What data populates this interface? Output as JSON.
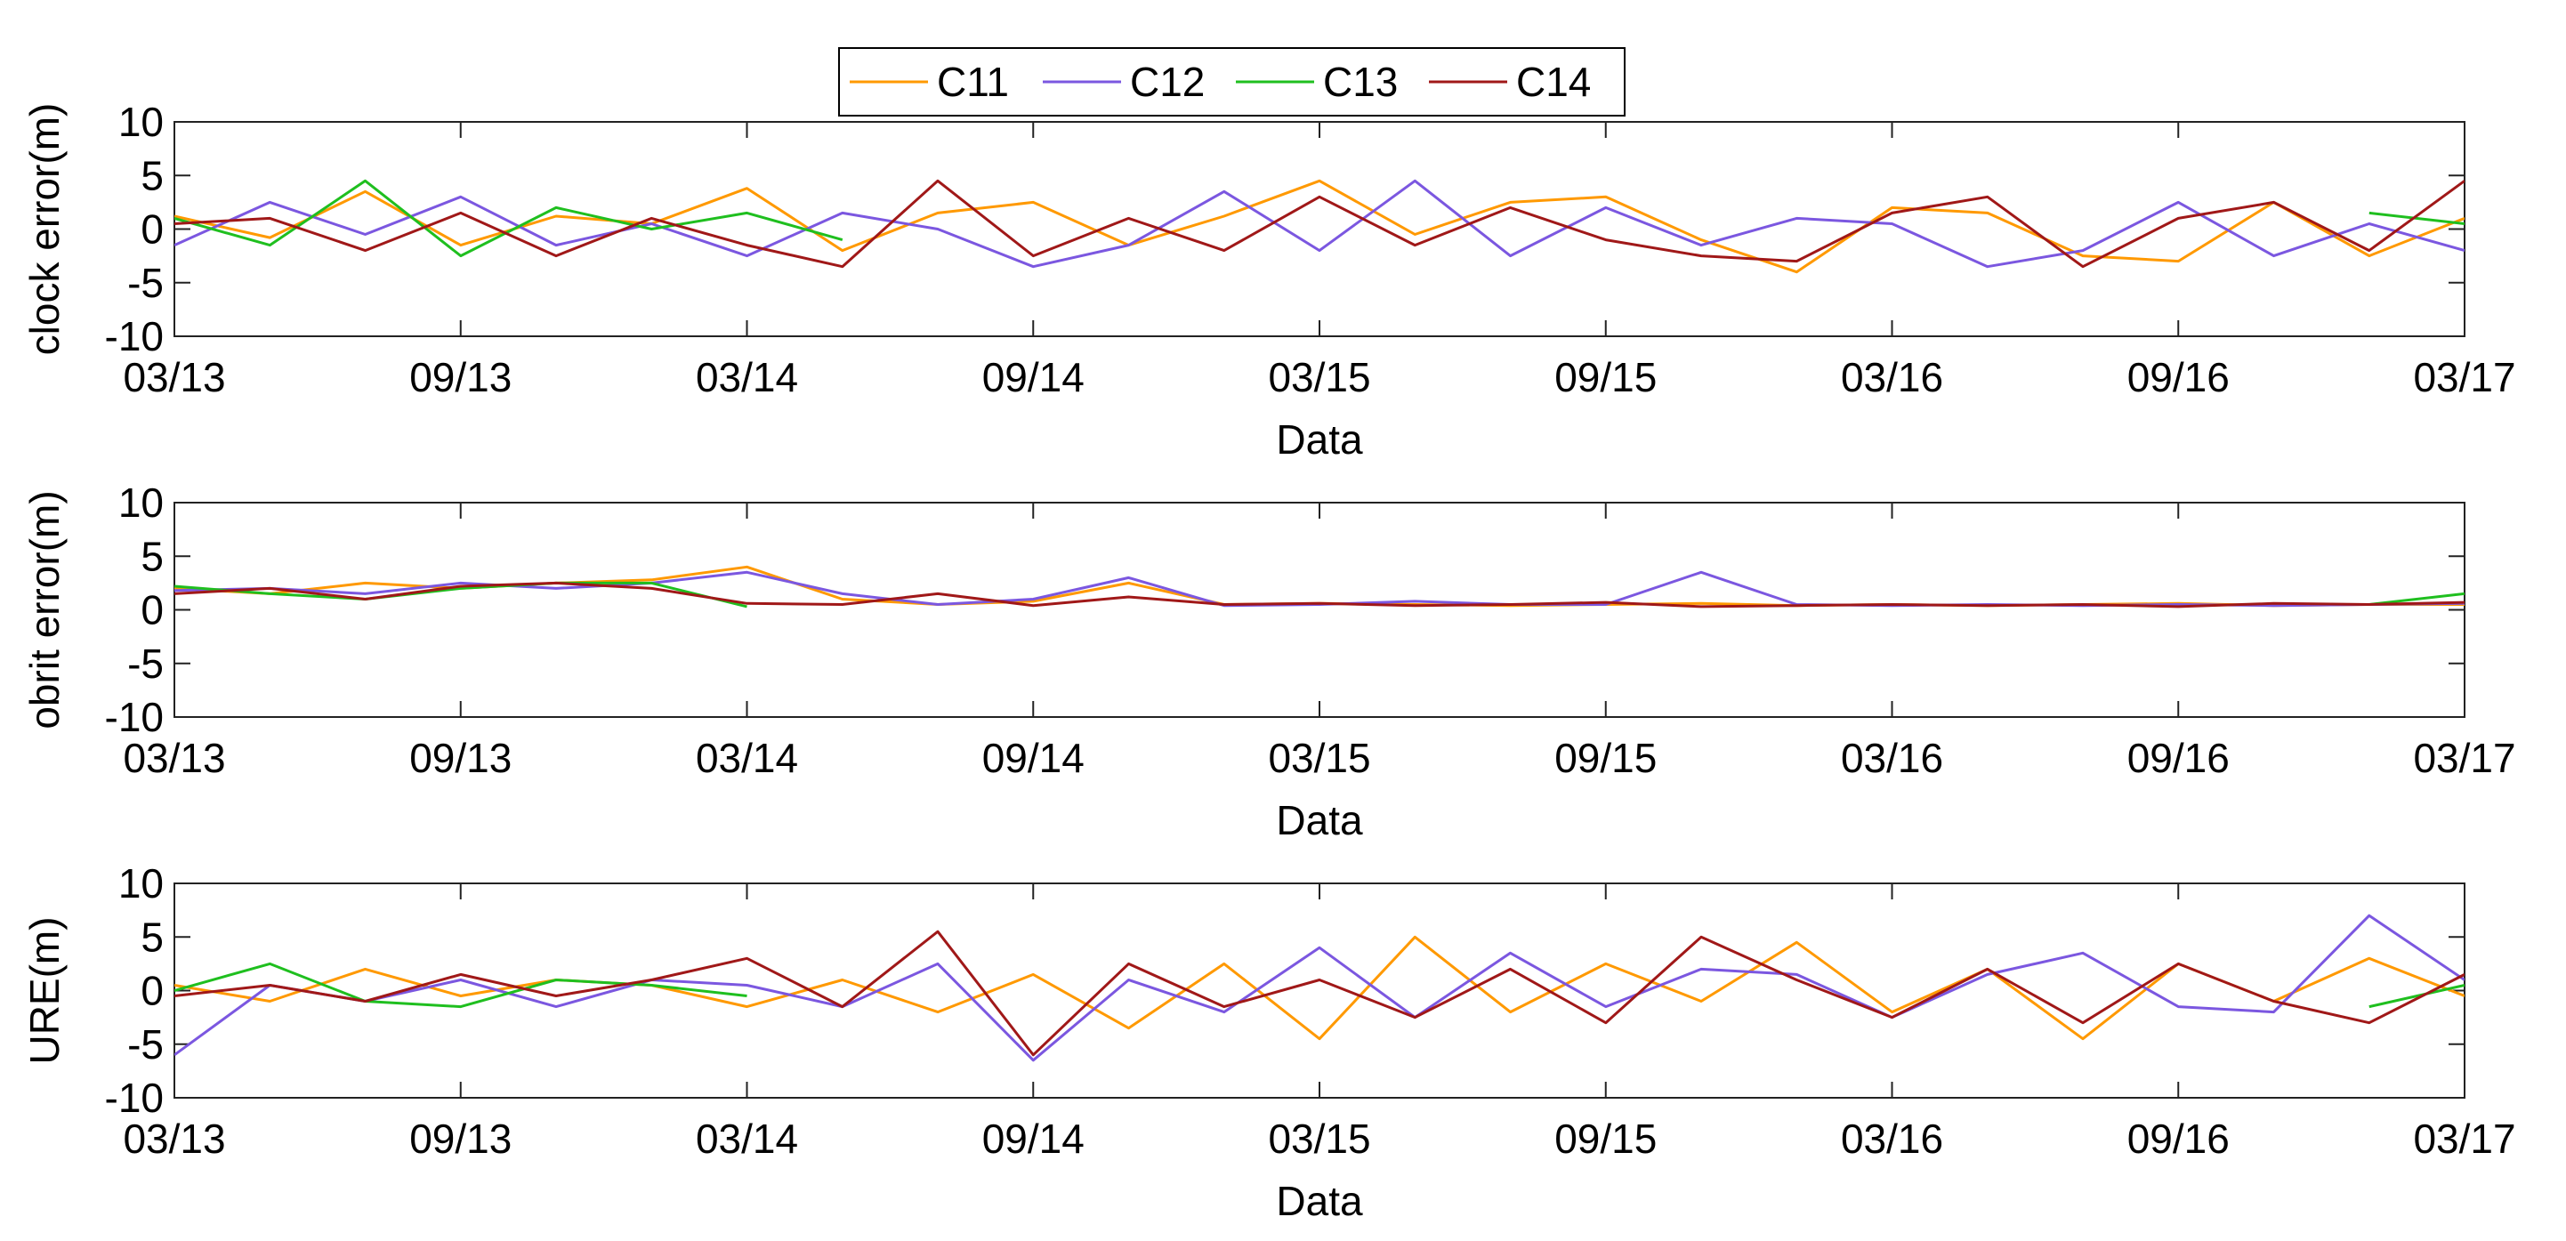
{
  "legend": {
    "entries": [
      "C11",
      "C12",
      "C13",
      "C14"
    ],
    "colors": [
      "#ff9900",
      "#7b57e0",
      "#1fbf1f",
      "#a01818"
    ]
  },
  "chart_data": [
    {
      "type": "line",
      "ylabel": "clock error(m)",
      "xlabel": "Data",
      "ylim": [
        -10,
        10
      ],
      "yticks": [
        10,
        5,
        0,
        -5,
        -10
      ],
      "xticks": [
        "03/13",
        "09/13",
        "03/14",
        "09/14",
        "03/15",
        "09/15",
        "03/16",
        "09/16",
        "03/17"
      ],
      "x_unit": "months since 03/13",
      "xlim": [
        0,
        48
      ],
      "series": [
        {
          "name": "C11",
          "x": [
            0,
            2,
            4,
            6,
            8,
            10,
            12,
            14,
            16,
            18,
            20,
            22,
            24,
            26,
            28,
            30,
            32,
            34,
            36,
            38,
            40,
            42,
            44,
            46,
            48
          ],
          "values": [
            1.2,
            -0.8,
            3.5,
            -1.5,
            1.2,
            0.5,
            3.8,
            -2.0,
            1.5,
            2.5,
            -1.5,
            1.2,
            4.5,
            -0.5,
            2.5,
            3.0,
            -1.0,
            -4.0,
            2.0,
            1.5,
            -2.5,
            -3.0,
            2.5,
            -2.5,
            1.0
          ]
        },
        {
          "name": "C12",
          "x": [
            0,
            2,
            4,
            6,
            8,
            10,
            12,
            14,
            16,
            18,
            20,
            22,
            24,
            26,
            28,
            30,
            32,
            34,
            36,
            38,
            40,
            42,
            44,
            46,
            48
          ],
          "values": [
            -1.5,
            2.5,
            -0.5,
            3.0,
            -1.5,
            0.5,
            -2.5,
            1.5,
            0.0,
            -3.5,
            -1.5,
            3.5,
            -2.0,
            4.5,
            -2.5,
            2.0,
            -1.5,
            1.0,
            0.5,
            -3.5,
            -2.0,
            2.5,
            -2.5,
            0.5,
            -2.0
          ]
        },
        {
          "name": "C13",
          "x": [
            0,
            2,
            4,
            6,
            8,
            10,
            12,
            14,
            16,
            18,
            20,
            22,
            24,
            26,
            28,
            30,
            32,
            34,
            36,
            38,
            40,
            42,
            44,
            46,
            48
          ],
          "values": [
            1.0,
            -1.5,
            4.5,
            -2.5,
            2.0,
            0.0,
            1.5,
            -1.0,
            null,
            null,
            null,
            null,
            null,
            null,
            null,
            null,
            null,
            null,
            null,
            null,
            null,
            null,
            null,
            1.5,
            0.5
          ]
        },
        {
          "name": "C14",
          "x": [
            0,
            2,
            4,
            6,
            8,
            10,
            12,
            14,
            16,
            18,
            20,
            22,
            24,
            26,
            28,
            30,
            32,
            34,
            36,
            38,
            40,
            42,
            44,
            46,
            48
          ],
          "values": [
            0.5,
            1.0,
            -2.0,
            1.5,
            -2.5,
            1.0,
            -1.5,
            -3.5,
            4.5,
            -2.5,
            1.0,
            -2.0,
            3.0,
            -1.5,
            2.0,
            -1.0,
            -2.5,
            -3.0,
            1.5,
            3.0,
            -3.5,
            1.0,
            2.5,
            -2.0,
            4.5
          ]
        }
      ]
    },
    {
      "type": "line",
      "ylabel": "obrit error(m)",
      "xlabel": "Data",
      "ylim": [
        -10,
        10
      ],
      "yticks": [
        10,
        5,
        0,
        -5,
        -10
      ],
      "xticks": [
        "03/13",
        "09/13",
        "03/14",
        "09/14",
        "03/15",
        "09/15",
        "03/16",
        "09/16",
        "03/17"
      ],
      "x_unit": "months since 03/13",
      "xlim": [
        0,
        48
      ],
      "series": [
        {
          "name": "C11",
          "x": [
            0,
            2,
            4,
            6,
            8,
            10,
            12,
            14,
            16,
            18,
            20,
            22,
            24,
            26,
            28,
            30,
            32,
            34,
            36,
            38,
            40,
            42,
            44,
            46,
            48
          ],
          "values": [
            2.0,
            1.5,
            2.5,
            2.0,
            2.5,
            2.8,
            4.0,
            1.0,
            0.5,
            0.8,
            2.5,
            0.5,
            0.6,
            0.5,
            0.4,
            0.5,
            0.6,
            0.4,
            0.5,
            0.4,
            0.5,
            0.6,
            0.4,
            0.5,
            0.5
          ]
        },
        {
          "name": "C12",
          "x": [
            0,
            2,
            4,
            6,
            8,
            10,
            12,
            14,
            16,
            18,
            20,
            22,
            24,
            26,
            28,
            30,
            32,
            34,
            36,
            38,
            40,
            42,
            44,
            46,
            48
          ],
          "values": [
            1.8,
            2.0,
            1.5,
            2.5,
            2.0,
            2.5,
            3.5,
            1.5,
            0.5,
            1.0,
            3.0,
            0.4,
            0.5,
            0.8,
            0.5,
            0.5,
            3.5,
            0.5,
            0.4,
            0.5,
            0.4,
            0.5,
            0.4,
            0.5,
            0.6
          ]
        },
        {
          "name": "C13",
          "x": [
            0,
            2,
            4,
            6,
            8,
            10,
            12,
            14,
            16,
            18,
            20,
            22,
            24,
            26,
            28,
            30,
            32,
            34,
            36,
            38,
            40,
            42,
            44,
            46,
            48
          ],
          "values": [
            2.2,
            1.5,
            1.0,
            2.0,
            2.5,
            2.5,
            0.3,
            null,
            null,
            null,
            null,
            null,
            null,
            null,
            null,
            null,
            null,
            null,
            null,
            null,
            null,
            null,
            null,
            0.5,
            1.5
          ]
        },
        {
          "name": "C14",
          "x": [
            0,
            2,
            4,
            6,
            8,
            10,
            12,
            14,
            16,
            18,
            20,
            22,
            24,
            26,
            28,
            30,
            32,
            34,
            36,
            38,
            40,
            42,
            44,
            46,
            48
          ],
          "values": [
            1.5,
            2.0,
            1.0,
            2.2,
            2.5,
            2.0,
            0.6,
            0.5,
            1.5,
            0.4,
            1.2,
            0.5,
            0.6,
            0.4,
            0.5,
            0.7,
            0.3,
            0.4,
            0.5,
            0.4,
            0.5,
            0.3,
            0.6,
            0.5,
            0.7
          ]
        }
      ]
    },
    {
      "type": "line",
      "ylabel": "URE(m)",
      "xlabel": "Data",
      "ylim": [
        -10,
        10
      ],
      "yticks": [
        10,
        5,
        0,
        -5,
        -10
      ],
      "xticks": [
        "03/13",
        "09/13",
        "03/14",
        "09/14",
        "03/15",
        "09/15",
        "03/16",
        "09/16",
        "03/17"
      ],
      "x_unit": "months since 03/13",
      "xlim": [
        0,
        48
      ],
      "series": [
        {
          "name": "C11",
          "x": [
            0,
            2,
            4,
            6,
            8,
            10,
            12,
            14,
            16,
            18,
            20,
            22,
            24,
            26,
            28,
            30,
            32,
            34,
            36,
            38,
            40,
            42,
            44,
            46,
            48
          ],
          "values": [
            0.5,
            -1.0,
            2.0,
            -0.5,
            1.0,
            0.5,
            -1.5,
            1.0,
            -2.0,
            1.5,
            -3.5,
            2.5,
            -4.5,
            5.0,
            -2.0,
            2.5,
            -1.0,
            4.5,
            -2.0,
            2.0,
            -4.5,
            2.5,
            -1.0,
            3.0,
            -0.5
          ]
        },
        {
          "name": "C12",
          "x": [
            0,
            2,
            4,
            6,
            8,
            10,
            12,
            14,
            16,
            18,
            20,
            22,
            24,
            26,
            28,
            30,
            32,
            34,
            36,
            38,
            40,
            42,
            44,
            46,
            48
          ],
          "values": [
            -6.0,
            0.5,
            -1.0,
            1.0,
            -1.5,
            1.0,
            0.5,
            -1.5,
            2.5,
            -6.5,
            1.0,
            -2.0,
            4.0,
            -2.5,
            3.5,
            -1.5,
            2.0,
            1.5,
            -2.5,
            1.5,
            3.5,
            -1.5,
            -2.0,
            7.0,
            1.0
          ]
        },
        {
          "name": "C13",
          "x": [
            0,
            2,
            4,
            6,
            8,
            10,
            12,
            14,
            16,
            18,
            20,
            22,
            24,
            26,
            28,
            30,
            32,
            34,
            36,
            38,
            40,
            42,
            44,
            46,
            48
          ],
          "values": [
            0.0,
            2.5,
            -1.0,
            -1.5,
            1.0,
            0.5,
            -0.5,
            null,
            null,
            null,
            null,
            null,
            null,
            null,
            null,
            null,
            null,
            null,
            null,
            null,
            null,
            null,
            null,
            -1.5,
            0.5
          ]
        },
        {
          "name": "C14",
          "x": [
            0,
            2,
            4,
            6,
            8,
            10,
            12,
            14,
            16,
            18,
            20,
            22,
            24,
            26,
            28,
            30,
            32,
            34,
            36,
            38,
            40,
            42,
            44,
            46,
            48
          ],
          "values": [
            -0.5,
            0.5,
            -1.0,
            1.5,
            -0.5,
            1.0,
            3.0,
            -1.5,
            5.5,
            -6.0,
            2.5,
            -1.5,
            1.0,
            -2.5,
            2.0,
            -3.0,
            5.0,
            1.0,
            -2.5,
            2.0,
            -3.0,
            2.5,
            -1.0,
            -3.0,
            1.5
          ]
        }
      ]
    }
  ]
}
